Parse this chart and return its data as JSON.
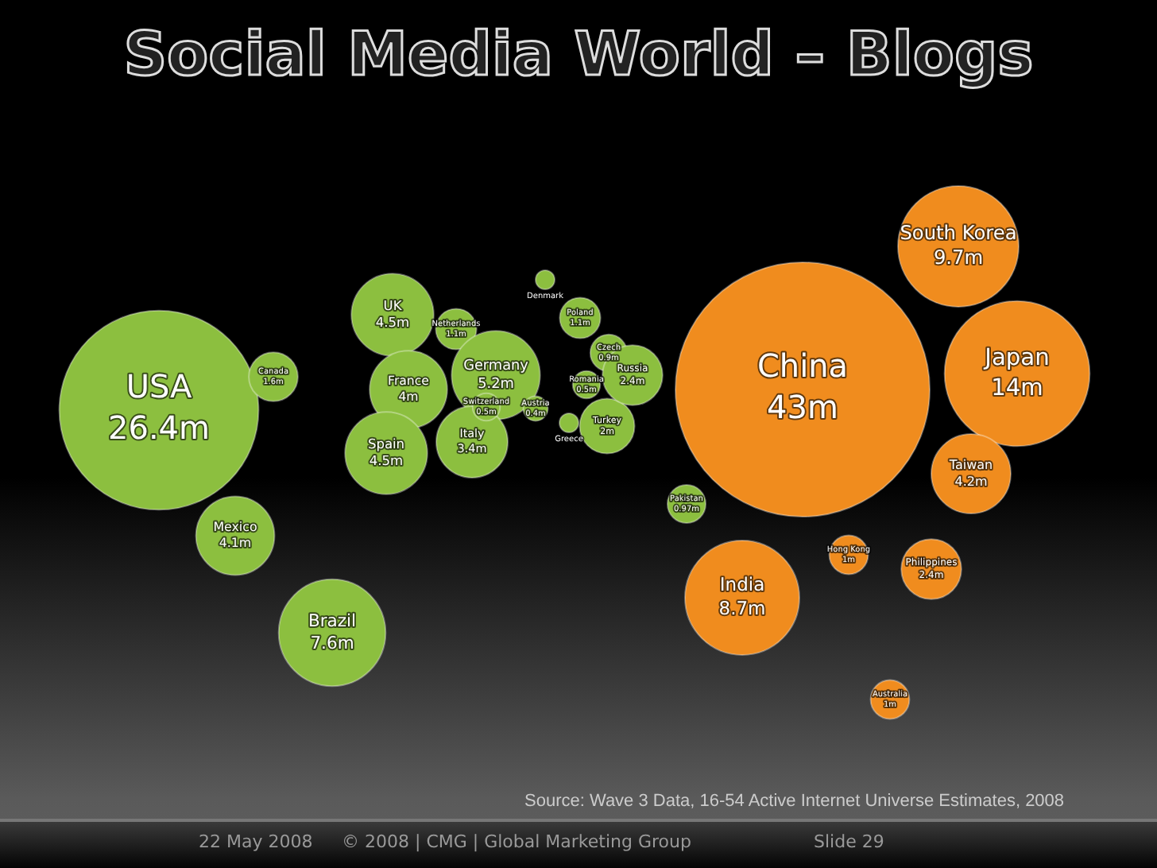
{
  "chart_data": {
    "type": "other",
    "title": "Social Media World – Blogs",
    "categories": [
      "USA",
      "Canada",
      "Mexico",
      "Brazil",
      "UK",
      "Netherlands",
      "France",
      "Spain",
      "Germany",
      "Italy",
      "Switzerland",
      "Austria",
      "Denmark",
      "Poland",
      "Czech",
      "Romania",
      "Greece",
      "Turkey",
      "Russia",
      "Pakistan",
      "China",
      "South Korea",
      "Japan",
      "Taiwan",
      "Hong Kong",
      "Philippines",
      "India",
      "Australia"
    ],
    "values": [
      26.4,
      1.6,
      4.1,
      7.6,
      4.5,
      1.1,
      4,
      4.5,
      5.2,
      3.4,
      0.5,
      0.4,
      null,
      1.1,
      0.9,
      0.5,
      null,
      2,
      2.4,
      0.97,
      43,
      9.7,
      14,
      4.2,
      1,
      2.4,
      8.7,
      1
    ],
    "value_labels": [
      "26.4m",
      "1.6m",
      "4.1m",
      "7.6m",
      "4.5m",
      "1.1m",
      "4m",
      "4.5m",
      "5.2m",
      "3.4m",
      "0.5m",
      "0.4m",
      null,
      "1.1m",
      "0.9m",
      "0.5m",
      null,
      "2m",
      "2.4m",
      "0.97m",
      "43m",
      "9.7m",
      "14m",
      "4.2m",
      "1m",
      "2.4m",
      "8.7m",
      "1m"
    ],
    "colors": [
      "#8cbf3f",
      "#8cbf3f",
      "#8cbf3f",
      "#8cbf3f",
      "#8cbf3f",
      "#8cbf3f",
      "#8cbf3f",
      "#8cbf3f",
      "#8cbf3f",
      "#8cbf3f",
      "#8cbf3f",
      "#8cbf3f",
      "#8cbf3f",
      "#8cbf3f",
      "#8cbf3f",
      "#8cbf3f",
      "#8cbf3f",
      "#8cbf3f",
      "#8cbf3f",
      "#8cbf3f",
      "#f08c1e",
      "#f08c1e",
      "#f08c1e",
      "#f08c1e",
      "#f08c1e",
      "#f08c1e",
      "#f08c1e",
      "#f08c1e"
    ],
    "annotations": [
      "Source: Wave 3 Data, 16-54 Active Internet Universe Estimates, 2008",
      "22 May 2008",
      "© 2008 | CMG | Global Marketing Group",
      "Slide 29"
    ]
  }
}
